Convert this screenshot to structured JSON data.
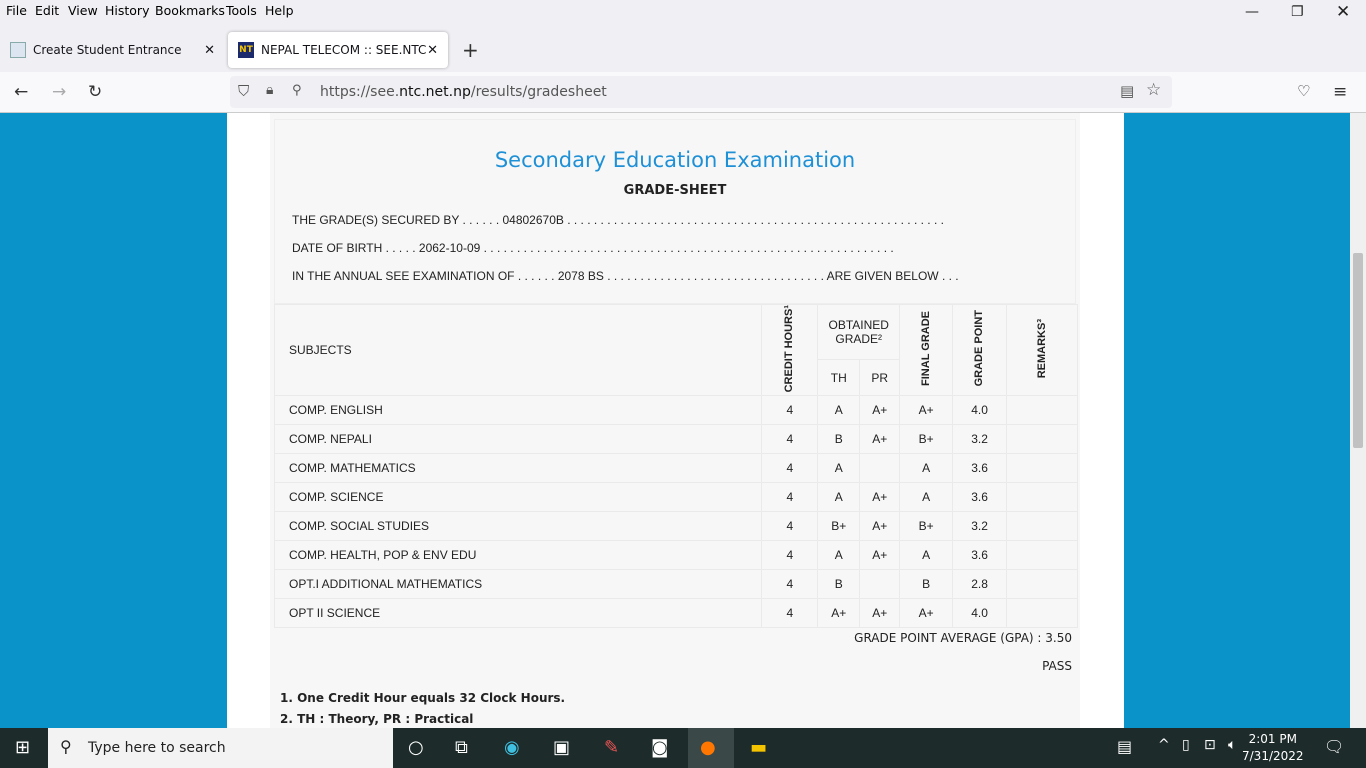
{
  "menu": [
    "File",
    "Edit",
    "View",
    "History",
    "Bookmarks",
    "Tools",
    "Help"
  ],
  "tabs": [
    {
      "label": "Create Student Entrance"
    },
    {
      "label": "NEPAL TELECOM :: SEE.NTC.NET"
    }
  ],
  "url": {
    "prefix": "https://see.",
    "domain": "ntc.net.np",
    "path": "/results/gradesheet"
  },
  "sheet": {
    "title": "Secondary Education Examination",
    "subtitle": "GRADE-SHEET",
    "line1": "THE GRADE(S) SECURED BY . . . . . . 04802670B . . . . . . . . . . . . . . . . . . . . . . . . . . . . . . . . . . . . . . . . . . . . . . . . . . . . . . . . .",
    "line2": "DATE OF BIRTH . . . . . 2062-10-09 . . . . . . . . . . . . . . . . . . . . . . . . . . . . . . . . . . . . . . . . . . . . . . . . . . . . . . . . . . . . . .",
    "line3": "IN THE ANNUAL SEE EXAMINATION OF . . . . . . 2078 BS . . . . . . . . . . . . . . . . . . . . . . . . . . . . . . . . . ARE GIVEN BELOW . . .",
    "headers": {
      "subjects": "SUBJECTS",
      "credit": "CREDIT HOURS¹",
      "obtained": "OBTAINED GRADE²",
      "th": "TH",
      "pr": "PR",
      "final": "FINAL GRADE",
      "gp": "GRADE POINT",
      "remarks": "REMARKS³"
    },
    "rows": [
      [
        "COMP. ENGLISH",
        "4",
        "A",
        "A+",
        "A+",
        "4.0",
        ""
      ],
      [
        "COMP. NEPALI",
        "4",
        "B",
        "A+",
        "B+",
        "3.2",
        ""
      ],
      [
        "COMP. MATHEMATICS",
        "4",
        "A",
        "",
        "A",
        "3.6",
        ""
      ],
      [
        "COMP. SCIENCE",
        "4",
        "A",
        "A+",
        "A",
        "3.6",
        ""
      ],
      [
        "COMP. SOCIAL STUDIES",
        "4",
        "B+",
        "A+",
        "B+",
        "3.2",
        ""
      ],
      [
        "COMP. HEALTH, POP & ENV EDU",
        "4",
        "A",
        "A+",
        "A",
        "3.6",
        ""
      ],
      [
        "OPT.I ADDITIONAL MATHEMATICS",
        "4",
        "B",
        "",
        "B",
        "2.8",
        ""
      ],
      [
        "OPT II SCIENCE",
        "4",
        "A+",
        "A+",
        "A+",
        "4.0",
        ""
      ]
    ],
    "gpa": "GRADE POINT AVERAGE (GPA) : 3.50",
    "result": "PASS",
    "notes": [
      "1. One Credit Hour equals 32 Clock Hours.",
      "2. TH : Theory, PR : Practical"
    ]
  },
  "taskbar": {
    "search_placeholder": "Type here to search",
    "time": "2:01 PM",
    "date": "7/31/2022"
  }
}
